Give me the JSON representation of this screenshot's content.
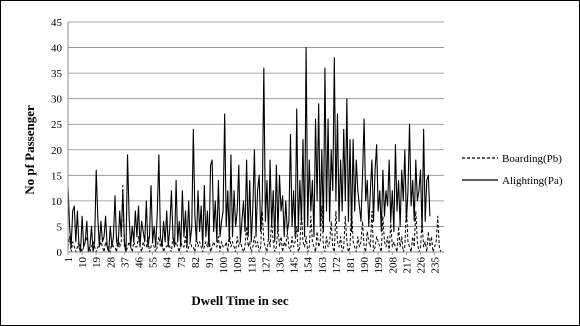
{
  "chart_data": {
    "type": "line",
    "title": "",
    "xlabel": "Dwell Time in sec",
    "ylabel": "No pf Passenger",
    "ylim": [
      0,
      45
    ],
    "yticks": [
      0,
      5,
      10,
      15,
      20,
      25,
      30,
      35,
      40,
      45
    ],
    "xlim": [
      1,
      241
    ],
    "xticks": [
      1,
      10,
      19,
      28,
      37,
      46,
      55,
      64,
      73,
      82,
      91,
      100,
      109,
      118,
      127,
      136,
      145,
      154,
      163,
      172,
      181,
      190,
      199,
      208,
      217,
      226,
      235
    ],
    "grid": "horizontal",
    "legend_position": "right",
    "x_start": 1,
    "series": [
      {
        "name": "Boarding(Pb)",
        "style": "dashed",
        "color": "#000000",
        "values": [
          1,
          3,
          0,
          2,
          1,
          0,
          1,
          2,
          1,
          0,
          1,
          2,
          3,
          1,
          0,
          1,
          2,
          1,
          0,
          1,
          1,
          2,
          1,
          0,
          2,
          1,
          1,
          0,
          2,
          1,
          1,
          0,
          3,
          1,
          2,
          13,
          1,
          0,
          1,
          2,
          1,
          0,
          2,
          1,
          1,
          3,
          1,
          0,
          2,
          1,
          1,
          3,
          0,
          1,
          2,
          1,
          0,
          1,
          3,
          1,
          2,
          0,
          1,
          1,
          2,
          1,
          0,
          3,
          1,
          2,
          1,
          0,
          2,
          1,
          1,
          3,
          0,
          1,
          2,
          1,
          1,
          0,
          3,
          1,
          2,
          1,
          0,
          1,
          2,
          1,
          3,
          0,
          1,
          2,
          1,
          1,
          3,
          0,
          2,
          1,
          1,
          2,
          0,
          4,
          1,
          2,
          1,
          0,
          3,
          1,
          2,
          1,
          0,
          1,
          5,
          1,
          2,
          0,
          1,
          3,
          1,
          2,
          0,
          1,
          8,
          2,
          1,
          0,
          3,
          1,
          6,
          2,
          0,
          1,
          5,
          1,
          3,
          0,
          2,
          1,
          4,
          1,
          0,
          3,
          1,
          2,
          5,
          0,
          1,
          8,
          2,
          1,
          3,
          0,
          1,
          7,
          2,
          1,
          0,
          4,
          1,
          2,
          9,
          1,
          0,
          3,
          1,
          2,
          6,
          1,
          0,
          8,
          2,
          1,
          3,
          0,
          1,
          7,
          2,
          0,
          1,
          9,
          2,
          1,
          0,
          3,
          1,
          2,
          6,
          1,
          0,
          4,
          2,
          1,
          8,
          0,
          1,
          3,
          2,
          1,
          0,
          7,
          2,
          1,
          3,
          0,
          6,
          1,
          2,
          1,
          0,
          5,
          1,
          3,
          0,
          1,
          9,
          2,
          1,
          0,
          3,
          1,
          8,
          2,
          0,
          1,
          6,
          1,
          2,
          0,
          4,
          1,
          3,
          0,
          1,
          2,
          7,
          1,
          0
        ]
      },
      {
        "name": "Alighting(Pa)",
        "style": "solid",
        "color": "#000000",
        "values": [
          13,
          5,
          1,
          8,
          9,
          2,
          8,
          1,
          0,
          7,
          1,
          2,
          6,
          0,
          1,
          5,
          0,
          2,
          16,
          7,
          1,
          6,
          2,
          3,
          7,
          1,
          0,
          5,
          1,
          3,
          11,
          2,
          1,
          8,
          3,
          12,
          2,
          0,
          19,
          7,
          1,
          5,
          2,
          8,
          3,
          9,
          1,
          6,
          4,
          2,
          10,
          1,
          3,
          13,
          2,
          5,
          1,
          8,
          19,
          3,
          1,
          6,
          2,
          8,
          1,
          5,
          12,
          3,
          1,
          14,
          2,
          6,
          1,
          12,
          3,
          8,
          1,
          10,
          2,
          5,
          24,
          7,
          2,
          12,
          4,
          9,
          1,
          13,
          3,
          8,
          1,
          17,
          18,
          4,
          10,
          2,
          14,
          3,
          6,
          8,
          27,
          5,
          12,
          2,
          19,
          3,
          12,
          5,
          8,
          17,
          2,
          6,
          10,
          4,
          18,
          3,
          14,
          2,
          9,
          20,
          3,
          12,
          15,
          4,
          10,
          36,
          6,
          14,
          3,
          18,
          5,
          12,
          2,
          17,
          4,
          15,
          8,
          11,
          3,
          10,
          4,
          6,
          23,
          5,
          12,
          3,
          28,
          4,
          14,
          6,
          22,
          3,
          40,
          5,
          18,
          8,
          14,
          3,
          26,
          10,
          29,
          5,
          20,
          4,
          36,
          8,
          26,
          6,
          20,
          12,
          38,
          10,
          27,
          6,
          18,
          8,
          24,
          10,
          30,
          6,
          22,
          4,
          22,
          8,
          18,
          12,
          9,
          6,
          15,
          26,
          10,
          14,
          5,
          12,
          18,
          6,
          16,
          21,
          8,
          12,
          4,
          16,
          7,
          12,
          9,
          18,
          6,
          12,
          4,
          21,
          8,
          14,
          5,
          16,
          10,
          20,
          6,
          12,
          25,
          9,
          14,
          6,
          18,
          10,
          12,
          16,
          4,
          24,
          6,
          14,
          15,
          7
        ]
      }
    ]
  }
}
